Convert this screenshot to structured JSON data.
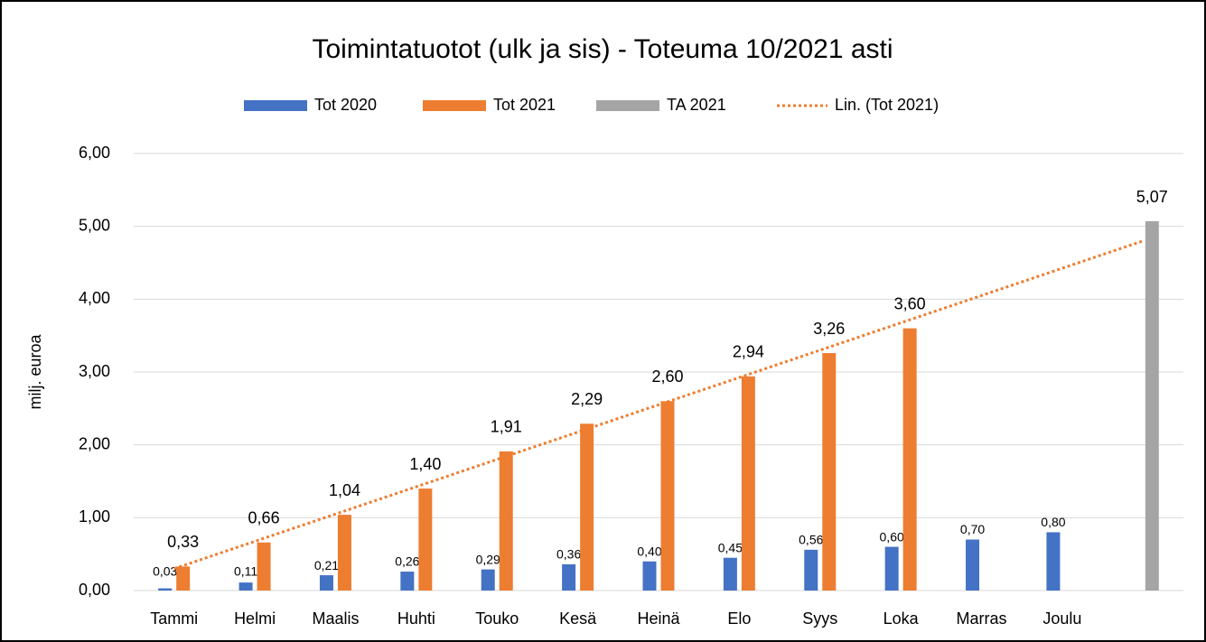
{
  "chart_data": {
    "type": "bar",
    "title": "Toimintatuotot (ulk ja sis) - Toteuma 10/2021 asti",
    "ylabel": "milj. euroa",
    "categories": [
      "Tammi",
      "Helmi",
      "Maalis",
      "Huhti",
      "Touko",
      "Kesä",
      "Heinä",
      "Elo",
      "Syys",
      "Loka",
      "Marras",
      "Joulu",
      null
    ],
    "series": [
      {
        "name": "Tot 2020",
        "color": "#4472c4",
        "values": [
          0.03,
          0.11,
          0.21,
          0.26,
          0.29,
          0.36,
          0.4,
          0.45,
          0.56,
          0.6,
          0.7,
          0.8,
          null
        ],
        "value_labels": [
          "0,03",
          "0,11",
          "0,21",
          "0,26",
          "0,29",
          "0,36",
          "0,40",
          "0,45",
          "0,56",
          "0,60",
          "0,70",
          "0,80",
          null
        ]
      },
      {
        "name": "Tot 2021",
        "color": "#ed7d31",
        "values": [
          0.33,
          0.66,
          1.04,
          1.4,
          1.91,
          2.29,
          2.6,
          2.94,
          3.26,
          3.6,
          null,
          null,
          null
        ],
        "value_labels": [
          "0,33",
          "0,66",
          "1,04",
          "1,40",
          "1,91",
          "2,29",
          "2,60",
          "2,94",
          "3,26",
          "3,60",
          null,
          null,
          null
        ]
      },
      {
        "name": "TA 2021",
        "color": "#a5a5a5",
        "values": [
          null,
          null,
          null,
          null,
          null,
          null,
          null,
          null,
          null,
          null,
          null,
          null,
          5.07
        ],
        "value_labels": [
          null,
          null,
          null,
          null,
          null,
          null,
          null,
          null,
          null,
          null,
          null,
          null,
          "5,07"
        ]
      },
      {
        "name": "Lin. (Tot 2021)",
        "color": "#ed7d31",
        "type": "line",
        "line_style": "dotted",
        "values": [
          0.3,
          0.675,
          1.05,
          1.425,
          1.8,
          2.175,
          2.55,
          2.925,
          3.3,
          3.675,
          4.05,
          4.425,
          4.8
        ]
      }
    ],
    "ylim": [
      0,
      6
    ],
    "yticks": [
      {
        "value": 0,
        "label": "0,00"
      },
      {
        "value": 1,
        "label": "1,00"
      },
      {
        "value": 2,
        "label": "2,00"
      },
      {
        "value": 3,
        "label": "3,00"
      },
      {
        "value": 4,
        "label": "4,00"
      },
      {
        "value": 5,
        "label": "5,00"
      },
      {
        "value": 6,
        "label": "6,00"
      }
    ],
    "grid": true,
    "legend": "top"
  }
}
